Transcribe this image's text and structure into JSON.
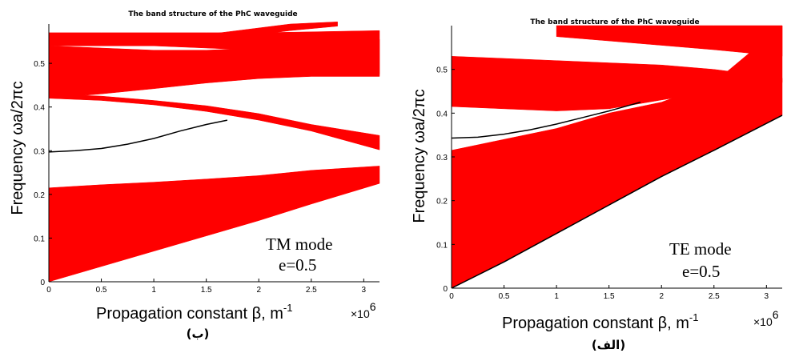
{
  "chart_data": [
    {
      "id": "left",
      "type": "area",
      "title": "The band structure of the PhC waveguide",
      "xlabel": "Propagation constant β, m",
      "xlabel_sup": "-1",
      "ylabel": "Frequency ωa/2πc",
      "x_multiplier": "×10",
      "x_multiplier_exp": "6",
      "caption": "(ب)",
      "mode_text": "TM mode",
      "param_text": "e=0.5",
      "xlim": [
        0,
        3.15
      ],
      "ylim": [
        0,
        0.59
      ],
      "xticks": [
        "0",
        "0.5",
        "1",
        "1.5",
        "2",
        "2.5",
        "3"
      ],
      "yticks": [
        "0",
        "0.1",
        "0.2",
        "0.3",
        "0.4",
        "0.5"
      ],
      "band_color": "#ff0000",
      "line_color": "#000000",
      "bands": [
        {
          "name": "band-1",
          "x": [
            0,
            0.5,
            1.0,
            1.5,
            2.0,
            2.5,
            3.15
          ],
          "lower": [
            0.0,
            0.035,
            0.07,
            0.105,
            0.14,
            0.178,
            0.225
          ],
          "upper": [
            0.215,
            0.222,
            0.228,
            0.235,
            0.243,
            0.255,
            0.265
          ]
        },
        {
          "name": "band-2",
          "x": [
            0,
            0.5,
            1.0,
            1.5,
            2.0,
            2.5,
            3.15
          ],
          "lower": [
            0.42,
            0.415,
            0.405,
            0.39,
            0.37,
            0.345,
            0.302
          ],
          "upper": [
            0.43,
            0.425,
            0.415,
            0.403,
            0.385,
            0.36,
            0.335
          ]
        },
        {
          "name": "band-3",
          "x": [
            0,
            0.5,
            1.0,
            1.5,
            2.0,
            2.5,
            3.15
          ],
          "lower": [
            0.42,
            0.43,
            0.442,
            0.455,
            0.465,
            0.47,
            0.47
          ],
          "upper": [
            0.54,
            0.535,
            0.53,
            0.53,
            0.535,
            0.545,
            0.555
          ]
        },
        {
          "name": "band-4",
          "x": [
            0,
            0.5,
            1.0,
            1.5,
            2.0,
            2.5,
            3.15
          ],
          "lower": [
            0.54,
            0.54,
            0.54,
            0.535,
            0.53,
            0.51,
            0.475
          ],
          "upper": [
            0.57,
            0.57,
            0.57,
            0.57,
            0.57,
            0.572,
            0.575
          ]
        },
        {
          "name": "band-5",
          "x": [
            1.3,
            1.8,
            2.3,
            2.75
          ],
          "lower": [
            0.545,
            0.56,
            0.575,
            0.585
          ],
          "upper": [
            0.56,
            0.575,
            0.59,
            0.595
          ]
        }
      ],
      "guided_mode": {
        "x": [
          0,
          0.25,
          0.5,
          0.75,
          1.0,
          1.25,
          1.5,
          1.7
        ],
        "y": [
          0.297,
          0.3,
          0.305,
          0.315,
          0.328,
          0.345,
          0.36,
          0.37
        ]
      }
    },
    {
      "id": "right",
      "type": "area",
      "title": "The band structure of the PhC waveguide",
      "xlabel": "Propagation constant β, m",
      "xlabel_sup": "-1",
      "ylabel": "Frequency ωa/2πc",
      "x_multiplier": "×10",
      "x_multiplier_exp": "6",
      "caption": "(الف)",
      "mode_text": "TE mode",
      "param_text": "e=0.5",
      "xlim": [
        0,
        3.15
      ],
      "ylim": [
        0,
        0.6
      ],
      "xticks": [
        "0",
        "0.5",
        "1",
        "1.5",
        "2",
        "2.5",
        "3"
      ],
      "yticks": [
        "0",
        "0.1",
        "0.2",
        "0.3",
        "0.4",
        "0.5"
      ],
      "band_color": "#ff0000",
      "line_color": "#000000",
      "bands": [
        {
          "name": "band-1",
          "x": [
            0,
            0.5,
            1.0,
            1.5,
            2.0,
            2.5,
            3.15
          ],
          "lower": [
            0.0,
            0.06,
            0.125,
            0.19,
            0.255,
            0.315,
            0.395
          ],
          "upper": [
            0.315,
            0.34,
            0.365,
            0.4,
            0.425,
            0.47,
            0.6
          ]
        },
        {
          "name": "band-2",
          "x": [
            0,
            0.5,
            1.0,
            1.5,
            2.0,
            2.5,
            3.15
          ],
          "lower": [
            0.415,
            0.41,
            0.405,
            0.41,
            0.43,
            0.45,
            0.47
          ],
          "upper": [
            0.53,
            0.525,
            0.52,
            0.515,
            0.51,
            0.5,
            0.48
          ]
        },
        {
          "name": "band-3",
          "x": [
            1.0,
            1.5,
            2.0,
            2.5,
            3.15
          ],
          "lower": [
            0.575,
            0.565,
            0.555,
            0.545,
            0.53
          ],
          "upper": [
            0.6,
            0.6,
            0.6,
            0.6,
            0.6
          ]
        }
      ],
      "guided_mode": {
        "x": [
          0,
          0.25,
          0.5,
          0.75,
          1.0,
          1.25,
          1.5,
          1.8
        ],
        "y": [
          0.343,
          0.345,
          0.352,
          0.362,
          0.375,
          0.39,
          0.405,
          0.425
        ]
      }
    }
  ]
}
